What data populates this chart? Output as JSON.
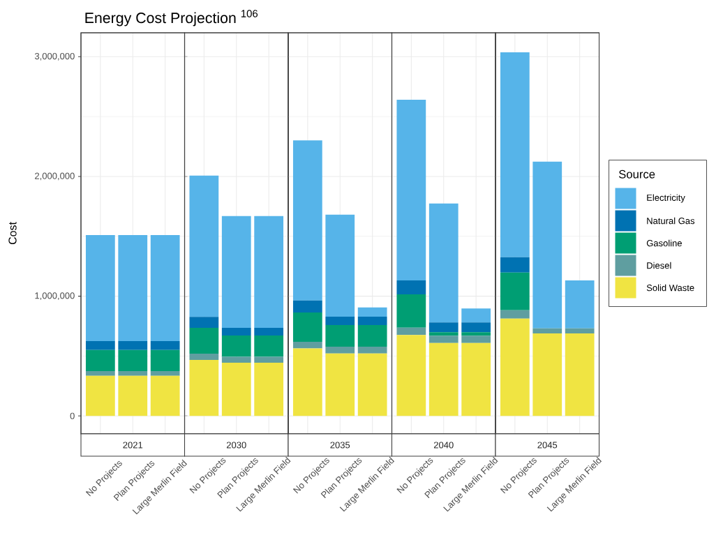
{
  "chart_data": [
    {
      "type": "bar",
      "stacked": true,
      "title": "Energy Cost Projection $^{106}$",
      "subtitle": "2021",
      "ylabel": "Cost",
      "categories": [
        "No Projects",
        "Plan Projects",
        "Large Merlin Field"
      ],
      "ylim": [
        -150000,
        3200000
      ],
      "yticks": [
        {
          "value": 0,
          "label": "0"
        },
        {
          "value": 1000000,
          "label": "1,000,000"
        },
        {
          "value": 2000000,
          "label": "2,000,000"
        },
        {
          "value": 3000000,
          "label": "3,000,000"
        }
      ],
      "grid": true,
      "series": [
        {
          "color": "#f0e442",
          "values": [
            335000,
            335000,
            335000
          ]
        },
        {
          "color": "#5f9ea0",
          "values": [
            40000,
            40000,
            40000
          ]
        },
        {
          "color": "#009e73",
          "values": [
            175000,
            175000,
            175000
          ]
        },
        {
          "color": "#0072b2",
          "values": [
            75000,
            75000,
            75000
          ]
        },
        {
          "color": "#56b4e9",
          "values": [
            885000,
            885000,
            885000
          ]
        }
      ]
    },
    {
      "type": "bar",
      "stacked": true,
      "subtitle": "2030",
      "categories": [
        "No Projects",
        "Plan Projects",
        "Large Merlin Field"
      ],
      "ylim": [
        -150000,
        3200000
      ],
      "yticks": [
        0,
        1000000,
        2000000,
        3000000
      ],
      "tick_labels": "x",
      "grid": true,
      "series": [
        {
          "color": "#f0e442",
          "values": [
            468000,
            444000,
            444000
          ]
        },
        {
          "color": "#5f9ea0",
          "values": [
            52000,
            49000,
            49000
          ]
        },
        {
          "color": "#009e73",
          "values": [
            215000,
            179000,
            179000
          ]
        },
        {
          "color": "#0072b2",
          "values": [
            92000,
            64000,
            64000
          ]
        },
        {
          "color": "#56b4e9",
          "values": [
            1180000,
            933000,
            933000
          ]
        }
      ]
    },
    {
      "type": "bar",
      "stacked": true,
      "subtitle": "2035",
      "categories": [
        "No Projects",
        "Plan Projects",
        "Large Merlin Field"
      ],
      "ylim": [
        -150000,
        3200000
      ],
      "yticks": [
        0,
        1000000,
        2000000,
        3000000
      ],
      "tick_labels": "x",
      "grid": true,
      "series": [
        {
          "color": "#f0e442",
          "values": [
            563000,
            522000,
            522000
          ]
        },
        {
          "color": "#5f9ea0",
          "values": [
            56000,
            56000,
            56000
          ]
        },
        {
          "color": "#009e73",
          "values": [
            245000,
            181000,
            181000
          ]
        },
        {
          "color": "#0072b2",
          "values": [
            100000,
            70000,
            70000
          ]
        },
        {
          "color": "#56b4e9",
          "values": [
            1338000,
            852000,
            77000
          ]
        }
      ]
    },
    {
      "type": "bar",
      "stacked": true,
      "subtitle": "2040",
      "categories": [
        "No Projects",
        "Plan Projects",
        "Large Merlin Field"
      ],
      "ylim": [
        -150000,
        3200000
      ],
      "yticks": [
        0,
        1000000,
        2000000,
        3000000
      ],
      "tick_labels": "x",
      "grid": true,
      "series": [
        {
          "color": "#f0e442",
          "values": [
            676000,
            609000,
            609000
          ]
        },
        {
          "color": "#5f9ea0",
          "values": [
            61000,
            61000,
            61000
          ]
        },
        {
          "color": "#009e73",
          "values": [
            278000,
            29000,
            29000
          ]
        },
        {
          "color": "#0072b2",
          "values": [
            117000,
            81000,
            81000
          ]
        },
        {
          "color": "#56b4e9",
          "values": [
            1508000,
            994000,
            117000
          ]
        }
      ]
    },
    {
      "type": "bar",
      "stacked": true,
      "subtitle": "2045",
      "legend_title": "Source",
      "categories": [
        "No Projects",
        "Plan Projects",
        "Large Merlin Field"
      ],
      "ylim": [
        -150000,
        3200000
      ],
      "yticks": [
        0,
        1000000,
        2000000,
        3000000
      ],
      "tick_labels": "x",
      "grid": true,
      "legend": "right",
      "series": [
        {
          "name": "Solid Waste",
          "color": "#f0e442",
          "values": [
            813000,
            689000,
            689000
          ]
        },
        {
          "name": "Diesel",
          "color": "#5f9ea0",
          "values": [
            69000,
            42000,
            42000
          ]
        },
        {
          "name": "Gasoline",
          "color": "#009e73",
          "values": [
            315000,
            0,
            0
          ]
        },
        {
          "name": "Natural Gas",
          "color": "#0072b2",
          "values": [
            128000,
            0,
            0
          ]
        },
        {
          "name": "Electricity",
          "color": "#56b4e9",
          "values": [
            1712000,
            1393000,
            401000
          ]
        }
      ]
    }
  ]
}
